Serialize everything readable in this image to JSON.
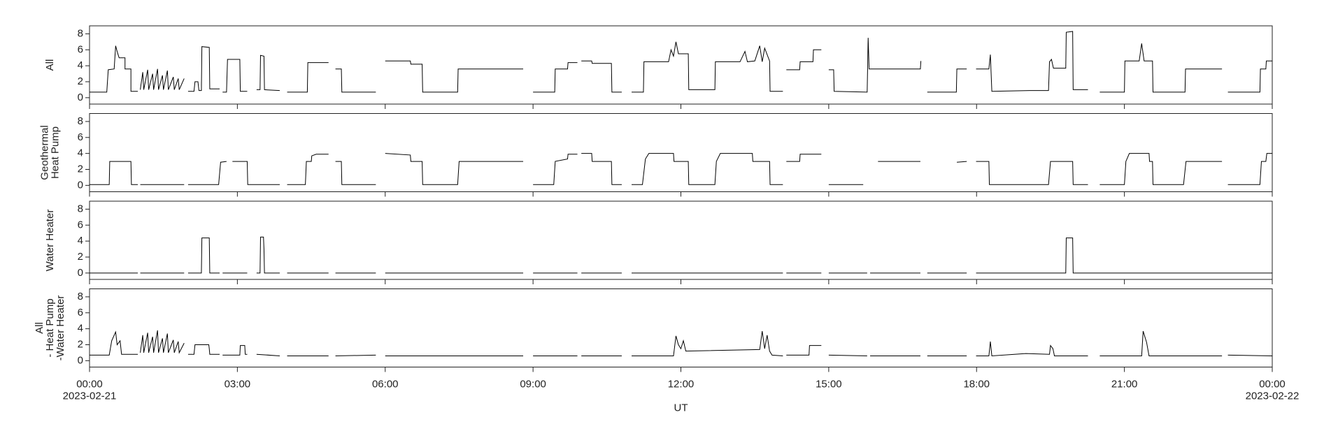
{
  "chart_data": [
    {
      "type": "line",
      "ylabel": [
        "All"
      ],
      "xlim": [
        0,
        24
      ],
      "ylim": [
        -0.8,
        9
      ],
      "yticks": [
        0,
        2,
        4,
        6,
        8
      ],
      "xticks": [
        0,
        3,
        6,
        9,
        12,
        15,
        18,
        21,
        24
      ],
      "x": [
        0,
        0.35,
        0.38,
        0.5,
        0.53,
        0.56,
        0.6,
        0.72,
        0.72,
        0.84,
        0.84,
        0.98,
        0.99,
        1.03,
        1.08,
        1.1,
        1.18,
        1.2,
        1.28,
        1.3,
        1.38,
        1.4,
        1.48,
        1.5,
        1.58,
        1.6,
        1.7,
        1.72,
        1.8,
        1.82,
        1.92,
        1.93,
        2.0,
        2.12,
        2.14,
        2.2,
        2.22,
        2.27,
        2.28,
        2.43,
        2.44,
        2.64,
        2.65,
        2.7,
        2.78,
        2.8,
        3.05,
        3.06,
        3.2,
        3.21,
        3.39,
        3.46,
        3.47,
        3.54,
        3.55,
        3.86,
        3.87,
        4.01,
        4.42,
        4.43,
        4.85,
        4.86,
        4.99,
        5.11,
        5.12,
        5.81,
        5.82,
        6.0,
        6.51,
        6.52,
        6.75,
        6.76,
        7.47,
        7.48,
        8.8,
        8.81,
        9.0,
        9.44,
        9.45,
        9.7,
        9.71,
        9.9,
        9.91,
        9.98,
        10.19,
        10.2,
        10.59,
        10.6,
        10.8,
        10.81,
        11.0,
        11.24,
        11.25,
        11.75,
        11.8,
        11.85,
        11.9,
        11.95,
        12.15,
        12.16,
        12.69,
        12.7,
        13.2,
        13.3,
        13.35,
        13.5,
        13.6,
        13.65,
        13.7,
        13.8,
        13.81,
        14.07,
        14.08,
        14.14,
        14.41,
        14.42,
        14.68,
        14.69,
        14.85,
        14.86,
        15.0,
        15.1,
        15.11,
        15.78,
        15.8,
        15.82,
        16.86,
        16.87,
        16.88,
        17.0,
        17.59,
        17.6,
        17.8,
        17.81,
        17.99,
        18.25,
        18.28,
        18.31,
        19.08,
        19.46,
        19.48,
        19.52,
        19.56,
        19.81,
        19.82,
        19.95,
        19.96,
        20.26,
        20.27,
        20.5,
        21.0,
        21.01,
        21.3,
        21.35,
        21.4,
        21.57,
        21.58,
        22.23,
        22.24,
        22.98,
        22.99,
        23.1,
        23.75,
        23.76,
        23.87,
        23.88,
        24
      ],
      "series": [
        {
          "color": "#000000",
          "values": [
            0.7,
            0.7,
            3.5,
            3.6,
            6.5,
            5.8,
            5,
            5,
            3.6,
            3.6,
            0.8,
            0.8,
            null,
            1,
            3.2,
            1,
            3.5,
            1,
            3,
            1,
            3.6,
            1,
            2.8,
            1,
            3.4,
            1,
            2.6,
            1,
            2.4,
            1,
            2.4,
            null,
            0.8,
            0.8,
            2,
            2,
            0.9,
            0.9,
            6.4,
            6.3,
            1.1,
            1.1,
            null,
            0.7,
            0.7,
            4.8,
            4.8,
            0.8,
            0.8,
            null,
            1,
            1,
            5.3,
            5.2,
            1,
            0.9,
            null,
            0.7,
            0.7,
            4.4,
            4.4,
            null,
            3.6,
            3.6,
            0.7,
            0.7,
            null,
            4.6,
            4.6,
            4.2,
            4.2,
            0.7,
            0.7,
            3.6,
            3.6,
            null,
            0.7,
            0.7,
            3.6,
            3.6,
            4.4,
            4.4,
            null,
            4.6,
            4.6,
            4.3,
            4.3,
            0.7,
            0.7,
            null,
            0.7,
            0.7,
            4.5,
            4.5,
            6,
            5.2,
            7,
            5.5,
            5.5,
            1,
            1,
            4.5,
            4.5,
            5.8,
            4.5,
            4.6,
            6.5,
            4.5,
            6.2,
            4.6,
            0.8,
            0.8,
            null,
            3.5,
            3.5,
            4.5,
            4.5,
            6,
            6,
            null,
            3.5,
            3.5,
            0.8,
            0.7,
            7.5,
            3.6,
            3.6,
            4.6,
            null,
            0.7,
            0.7,
            3.6,
            3.6,
            null,
            3.6,
            3.6,
            5.4,
            0.8,
            0.9,
            0.9,
            4.5,
            4.8,
            3.7,
            3.7,
            8.2,
            8.3,
            1,
            1,
            null,
            0.7,
            0.7,
            4.6,
            4.6,
            6.8,
            4.6,
            4.6,
            0.7,
            0.7,
            3.6,
            3.6,
            null,
            0.7,
            0.7,
            3.6,
            3.6,
            4.6,
            4.6
          ]
        }
      ]
    },
    {
      "type": "line",
      "ylabel": [
        "Geothermal",
        "Heat Pump"
      ],
      "xlim": [
        0,
        24
      ],
      "ylim": [
        -0.8,
        9
      ],
      "yticks": [
        0,
        2,
        4,
        6,
        8
      ],
      "xticks": [
        0,
        3,
        6,
        9,
        12,
        15,
        18,
        21,
        24
      ],
      "x": [
        0,
        0.4,
        0.41,
        0.84,
        0.85,
        0.98,
        0.99,
        1.03,
        1.92,
        1.93,
        2.0,
        2.62,
        2.66,
        2.78,
        2.79,
        2.9,
        3.2,
        3.21,
        3.86,
        3.87,
        4.01,
        4.38,
        4.4,
        4.5,
        4.51,
        4.6,
        4.85,
        4.86,
        4.99,
        5.11,
        5.12,
        5.81,
        5.82,
        6.0,
        6.51,
        6.52,
        6.75,
        6.76,
        7.47,
        7.5,
        8.8,
        8.81,
        9.0,
        9.42,
        9.45,
        9.7,
        9.71,
        9.9,
        9.91,
        9.98,
        10.19,
        10.2,
        10.59,
        10.6,
        10.8,
        10.81,
        11.0,
        11.22,
        11.28,
        11.35,
        11.85,
        11.86,
        12.15,
        12.16,
        12.69,
        12.72,
        12.8,
        13.45,
        13.46,
        13.8,
        13.81,
        14.07,
        14.08,
        14.14,
        14.41,
        14.42,
        14.85,
        14.86,
        15.0,
        15.7,
        15.71,
        16.0,
        16.86,
        16.87,
        17.6,
        17.8,
        17.81,
        17.99,
        18.25,
        18.26,
        19.46,
        19.5,
        19.95,
        19.96,
        20.26,
        20.27,
        20.5,
        21.0,
        21.03,
        21.1,
        21.5,
        21.51,
        21.57,
        21.58,
        22.2,
        22.25,
        22.98,
        22.99,
        23.1,
        23.75,
        23.78,
        23.87,
        23.89,
        24
      ],
      "series": [
        {
          "color": "#000000",
          "values": [
            0.1,
            0.1,
            3,
            3,
            0.1,
            0.1,
            null,
            0.1,
            0.1,
            null,
            0.1,
            0.1,
            2.9,
            3,
            null,
            3,
            3,
            0.1,
            0.1,
            null,
            0.1,
            0.1,
            3,
            3,
            3.7,
            3.9,
            3.9,
            null,
            3,
            3,
            0.1,
            0.1,
            null,
            4,
            3.8,
            3,
            3,
            0.1,
            0.1,
            3,
            3,
            null,
            0.1,
            0.1,
            3,
            3.3,
            3.9,
            3.9,
            null,
            4,
            4,
            3,
            3,
            0.1,
            0.1,
            null,
            0.1,
            0.1,
            3.3,
            4,
            4,
            3,
            3,
            0.1,
            0.1,
            3,
            4,
            4,
            3,
            3,
            0.1,
            0.1,
            null,
            3,
            3,
            3.9,
            3.9,
            null,
            0.1,
            0.1,
            null,
            3,
            3,
            null,
            2.9,
            3,
            null,
            3,
            3,
            0.1,
            0.1,
            3,
            3,
            0.1,
            0.1,
            null,
            0.1,
            0.1,
            3,
            4,
            4,
            3,
            3,
            0.1,
            0.1,
            3,
            3,
            null,
            0.1,
            0.1,
            3,
            3,
            4,
            4
          ]
        }
      ]
    },
    {
      "type": "line",
      "ylabel": [
        "Water Heater"
      ],
      "xlim": [
        0,
        24
      ],
      "ylim": [
        -0.8,
        9
      ],
      "yticks": [
        0,
        2,
        4,
        6,
        8
      ],
      "xticks": [
        0,
        3,
        6,
        9,
        12,
        15,
        18,
        21,
        24
      ],
      "x": [
        0,
        0.98,
        0.99,
        1.03,
        1.92,
        1.93,
        2.0,
        2.27,
        2.28,
        2.43,
        2.44,
        2.64,
        2.65,
        2.7,
        3.2,
        3.21,
        3.39,
        3.46,
        3.47,
        3.53,
        3.54,
        3.55,
        3.86,
        3.87,
        4.01,
        4.85,
        4.86,
        4.99,
        5.81,
        5.82,
        6.0,
        8.8,
        8.81,
        9.0,
        9.9,
        9.91,
        9.98,
        10.8,
        10.81,
        11.0,
        14.07,
        14.08,
        14.14,
        14.85,
        14.86,
        15.0,
        15.78,
        15.79,
        15.84,
        16.86,
        16.87,
        17.0,
        17.8,
        17.81,
        17.99,
        19.81,
        19.82,
        19.95,
        19.96,
        24
      ],
      "series": [
        {
          "color": "#000000",
          "values": [
            0,
            0,
            null,
            0,
            0,
            null,
            0,
            0,
            4.4,
            4.4,
            0,
            0,
            null,
            0,
            0,
            null,
            0,
            0,
            4.5,
            4.5,
            3,
            0,
            0,
            null,
            0,
            0,
            null,
            0,
            0,
            null,
            0,
            0,
            null,
            0,
            0,
            null,
            0,
            0,
            null,
            0,
            0,
            null,
            0,
            0,
            null,
            0,
            0,
            null,
            0,
            0,
            null,
            0,
            0,
            null,
            0,
            0,
            4.4,
            4.4,
            0,
            0
          ]
        }
      ]
    },
    {
      "type": "line",
      "ylabel": [
        "All",
        "- Heat Pump",
        "-Water Heater"
      ],
      "xlabel": "UT",
      "xlim": [
        0,
        24
      ],
      "ylim": [
        -0.8,
        9
      ],
      "yticks": [
        0,
        2,
        4,
        6,
        8
      ],
      "xticks": [
        {
          "value": 0,
          "label": "00:00"
        },
        {
          "value": 3,
          "label": "03:00"
        },
        {
          "value": 6,
          "label": "06:00"
        },
        {
          "value": 9,
          "label": "09:00"
        },
        {
          "value": 12,
          "label": "12:00"
        },
        {
          "value": 15,
          "label": "15:00"
        },
        {
          "value": 18,
          "label": "18:00"
        },
        {
          "value": 21,
          "label": "21:00"
        },
        {
          "value": 24,
          "label": "00:00"
        }
      ],
      "x_dates": [
        {
          "value": 0,
          "label": "2023-02-21"
        },
        {
          "value": 24,
          "label": "2023-02-22"
        }
      ],
      "x": [
        0,
        0.4,
        0.45,
        0.53,
        0.56,
        0.62,
        0.65,
        0.98,
        0.99,
        1.03,
        1.08,
        1.1,
        1.18,
        1.2,
        1.28,
        1.3,
        1.38,
        1.4,
        1.48,
        1.5,
        1.58,
        1.6,
        1.7,
        1.72,
        1.8,
        1.82,
        1.92,
        1.93,
        2.0,
        2.12,
        2.14,
        2.42,
        2.43,
        2.44,
        2.64,
        2.65,
        2.7,
        3.05,
        3.06,
        3.15,
        3.16,
        3.2,
        3.21,
        3.39,
        3.86,
        3.87,
        4.01,
        4.85,
        4.86,
        4.99,
        5.81,
        5.82,
        6.0,
        8.8,
        8.81,
        9.0,
        9.9,
        9.91,
        9.98,
        10.8,
        10.81,
        11.0,
        11.85,
        11.9,
        11.95,
        12.0,
        12.05,
        12.1,
        13.6,
        13.65,
        13.7,
        13.75,
        13.8,
        13.85,
        14.07,
        14.08,
        14.14,
        14.6,
        14.61,
        14.85,
        14.86,
        15.0,
        15.78,
        15.79,
        15.84,
        16.86,
        16.87,
        17.0,
        17.8,
        17.81,
        17.99,
        18.25,
        18.28,
        18.31,
        19.0,
        19.48,
        19.5,
        19.55,
        19.58,
        20.26,
        20.27,
        20.5,
        21.35,
        21.38,
        21.45,
        21.5,
        22.98,
        22.99,
        23.1,
        24
      ],
      "series": [
        {
          "color": "#000000",
          "values": [
            0.7,
            0.7,
            2.5,
            3.6,
            2,
            2.5,
            0.8,
            0.8,
            null,
            1,
            3.2,
            1,
            3.5,
            1,
            3,
            1,
            3.8,
            1,
            2.8,
            1,
            3.4,
            1,
            2.6,
            1,
            2.4,
            1,
            2.2,
            null,
            0.8,
            0.8,
            2,
            2,
            1.5,
            0.8,
            0.8,
            null,
            0.7,
            0.7,
            1.9,
            1.9,
            0.8,
            0.8,
            null,
            0.8,
            0.6,
            null,
            0.6,
            0.6,
            null,
            0.6,
            0.7,
            null,
            0.6,
            0.6,
            null,
            0.6,
            0.6,
            null,
            0.6,
            0.6,
            null,
            0.6,
            0.6,
            3.1,
            2,
            1.5,
            2.5,
            1.2,
            1.4,
            3.7,
            1.5,
            3.2,
            1.2,
            0.7,
            0.6,
            null,
            0.7,
            0.7,
            1.9,
            1.9,
            null,
            0.7,
            0.6,
            null,
            0.6,
            0.6,
            null,
            0.6,
            0.6,
            null,
            0.6,
            0.6,
            2.4,
            0.6,
            0.9,
            0.8,
            1.9,
            1.5,
            0.6,
            0.6,
            null,
            0.6,
            0.6,
            3.7,
            2.3,
            0.6,
            0.6,
            null,
            0.7,
            0.6
          ]
        }
      ]
    }
  ]
}
